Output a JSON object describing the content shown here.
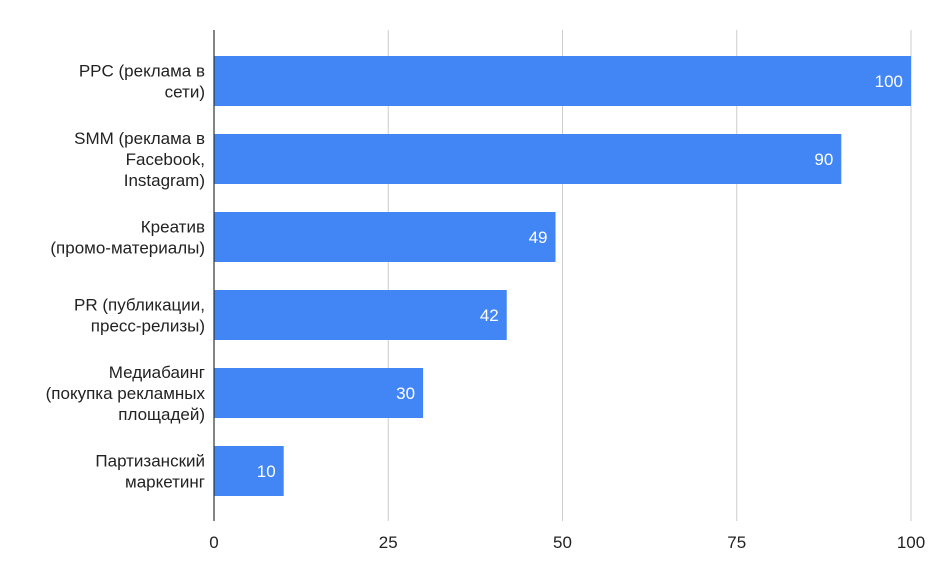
{
  "chart_data": {
    "type": "bar",
    "orientation": "horizontal",
    "title": "",
    "xlabel": "",
    "ylabel": "",
    "categories": [
      [
        "PPC (реклама в",
        "сети)"
      ],
      [
        "SMM (реклама в",
        "Facebook,",
        "Instagram)"
      ],
      [
        "Креатив",
        "(промо-материалы)"
      ],
      [
        "PR (публикации,",
        "пресс-релизы)"
      ],
      [
        "Медиабаинг",
        "(покупка рекламных",
        "площадей)"
      ],
      [
        "Партизанский",
        "маркетинг"
      ]
    ],
    "values": [
      100,
      90,
      49,
      42,
      30,
      10
    ],
    "data_labels": [
      "100",
      "90",
      "49",
      "42",
      "30",
      "10"
    ],
    "xlim": [
      0,
      100
    ],
    "ticks": [
      0,
      25,
      50,
      75,
      100
    ],
    "tick_labels": [
      "0",
      "25",
      "50",
      "75",
      "100"
    ],
    "grid": true,
    "legend": "none",
    "colors": {
      "bar": "#4285f4",
      "grid": "#cccccc",
      "axis": "#333333",
      "text": "#222222",
      "data_label": "#ffffff"
    }
  }
}
